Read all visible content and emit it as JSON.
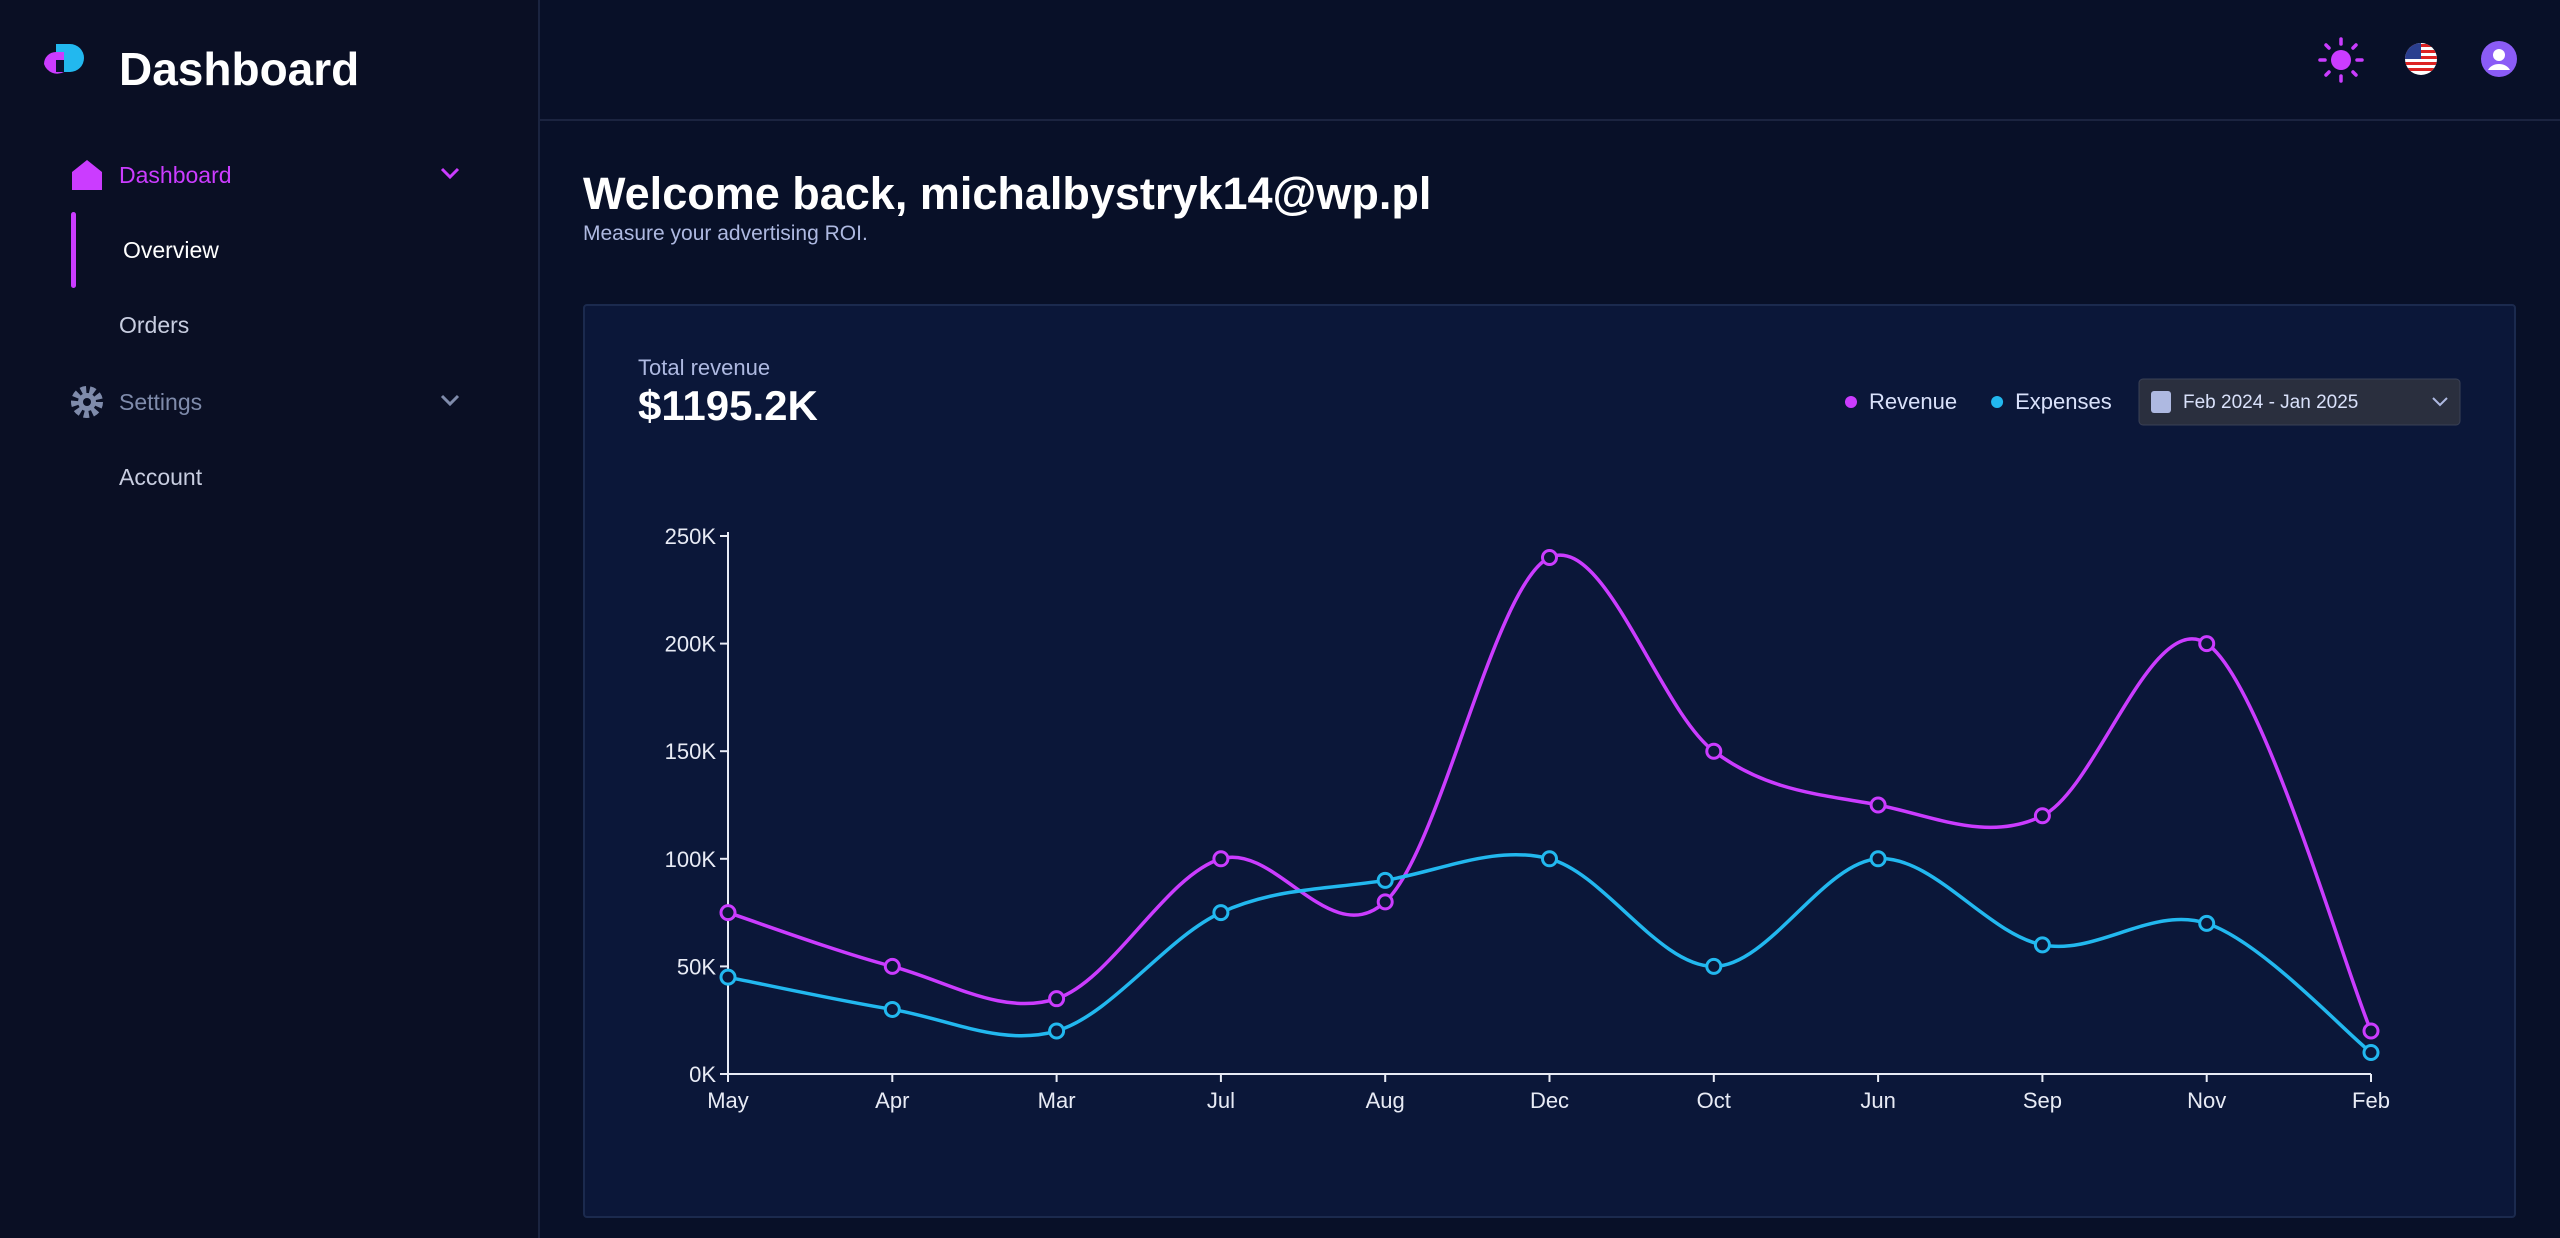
{
  "sidebar": {
    "brand": "Dashboard",
    "nav": [
      {
        "label": "Dashboard",
        "children": [
          "Overview",
          "Orders"
        ]
      },
      {
        "label": "Settings",
        "children": [
          "Account"
        ]
      }
    ]
  },
  "main": {
    "greeting": "Welcome back, michalbystryk14@wp.pl",
    "subtitle": "Measure your advertising ROI."
  },
  "chart_data": {
    "type": "line",
    "title": "Total revenue",
    "total": "$1195.2K",
    "date_range": "Feb 2024 - Jan 2025",
    "categories": [
      "May",
      "Apr",
      "Mar",
      "Jul",
      "Aug",
      "Dec",
      "Oct",
      "Jun",
      "Sep",
      "Nov",
      "Feb"
    ],
    "series": [
      {
        "name": "Revenue",
        "color": "#cb3cff",
        "values": [
          75,
          50,
          35,
          100,
          80,
          240,
          150,
          125,
          120,
          200,
          20
        ]
      },
      {
        "name": "Expenses",
        "color": "#22b8ef",
        "values": [
          45,
          30,
          20,
          75,
          90,
          100,
          50,
          100,
          60,
          70,
          10
        ]
      }
    ],
    "ylim": [
      0,
      250
    ],
    "yticks": [
      {
        "value": 0,
        "label": "0K"
      },
      {
        "value": 50,
        "label": "50K"
      },
      {
        "value": 100,
        "label": "100K"
      },
      {
        "value": 150,
        "label": "150K"
      },
      {
        "value": 200,
        "label": "200K"
      },
      {
        "value": 250,
        "label": "250K"
      }
    ],
    "grid": false
  }
}
